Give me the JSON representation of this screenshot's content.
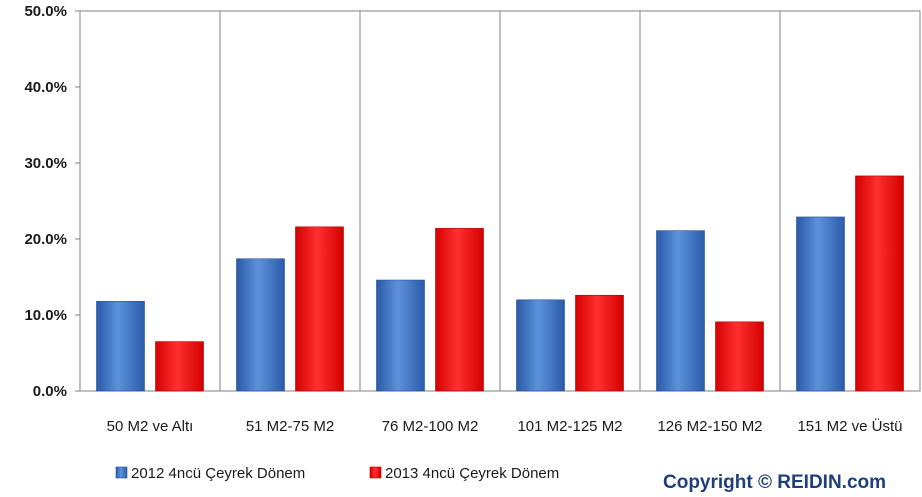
{
  "chart_data": {
    "type": "bar",
    "categories": [
      "50 M2 ve Altı",
      "51 M2-75 M2",
      "76 M2-100 M2",
      "101 M2-125 M2",
      "126 M2-150 M2",
      "151 M2 ve Üstü"
    ],
    "series": [
      {
        "name": "2012 4ncü Çeyrek Dönem",
        "values": [
          11.8,
          17.4,
          14.6,
          12.0,
          21.1,
          22.9
        ],
        "color": "#3a70bf"
      },
      {
        "name": "2013 4ncü Çeyrek Dönem",
        "values": [
          6.5,
          21.6,
          21.4,
          12.6,
          9.1,
          28.3
        ],
        "color": "#ee1111"
      }
    ],
    "y_ticks": [
      "0.0%",
      "10.0%",
      "20.0%",
      "30.0%",
      "40.0%",
      "50.0%"
    ],
    "ylim": [
      0,
      50
    ],
    "grid": "vertical",
    "legend_placement": "bottom-left"
  },
  "copyright": "Copyright © REIDIN.com"
}
